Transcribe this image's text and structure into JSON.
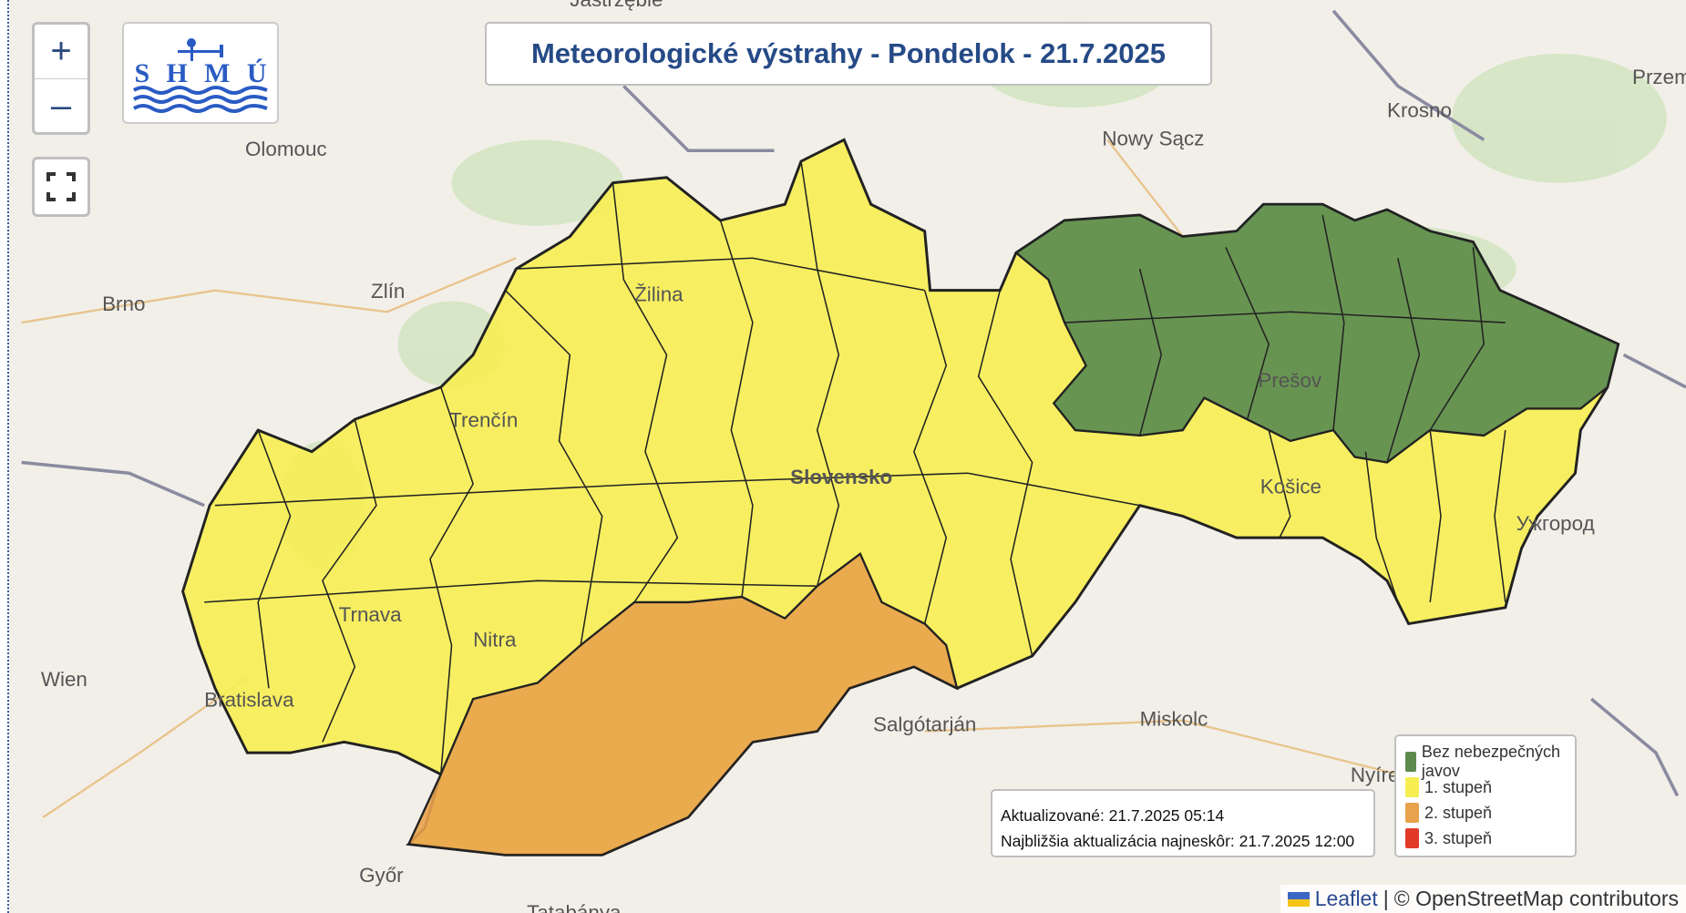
{
  "title": "Meteorologické výstrahy - Pondelok - 21.7.2025",
  "controls": {
    "zoom_in": "+",
    "zoom_out": "–",
    "fullscreen_icon": "fullscreen-icon"
  },
  "logo": {
    "text": "SHMÚ"
  },
  "update_box": {
    "updated": "Aktualizované: 21.7.2025 05:14",
    "next_update": "Najbližšia aktualizácia najneskôr: 21.7.2025 12:00"
  },
  "legend": {
    "items": [
      {
        "label": "Bez nebezpečných javov",
        "color": "#5f8a4f"
      },
      {
        "label": "1. stupeň",
        "color": "#f7ee52"
      },
      {
        "label": "2. stupeň",
        "color": "#e8a24c"
      },
      {
        "label": "3. stupeň",
        "color": "#e23a2a"
      }
    ]
  },
  "attribution": {
    "leaflet": "Leaflet",
    "separator": "|",
    "osm": "© OpenStreetMap contributors"
  },
  "cities": [
    "Olomouc",
    "Brno",
    "Zlín",
    "Wien",
    "Bratislava",
    "Trnava",
    "Nitra",
    "Trenčín",
    "Žilina",
    "Slovensko",
    "Prešov",
    "Košice",
    "Nowy Sącz",
    "Krosno",
    "Przem",
    "Ужгород",
    "Salgótarján",
    "Miskolc",
    "Nyíre",
    "Győr",
    "Tatabánya",
    "Jastrzębie"
  ],
  "warning_levels": {
    "no_warning": "northeast (Prešov region)",
    "level_1": "most of Slovakia",
    "level_2": "south-central border (Nitra/Banská Bystrica south)"
  }
}
